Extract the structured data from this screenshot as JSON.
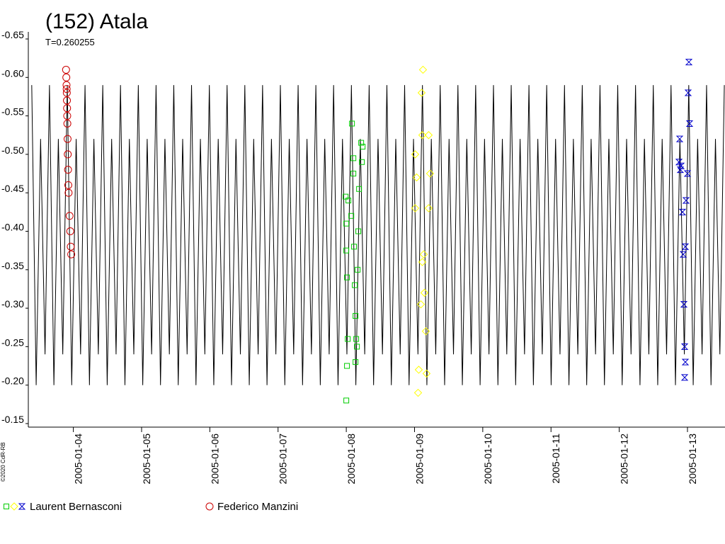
{
  "chart_data": {
    "type": "scatter",
    "title": "(152) Atala",
    "subtitle": "T=0.260255",
    "copyright": "©2020 CdR-RB",
    "xlim": [
      3.34,
      13.55
    ],
    "xticks": [
      {
        "value": 4,
        "label": "2005-01-04"
      },
      {
        "value": 5,
        "label": "2005-01-05"
      },
      {
        "value": 6,
        "label": "2005-01-06"
      },
      {
        "value": 7,
        "label": "2005-01-07"
      },
      {
        "value": 8,
        "label": "2005-01-08"
      },
      {
        "value": 9,
        "label": "2005-01-09"
      },
      {
        "value": 10,
        "label": "2005-01-10"
      },
      {
        "value": 11,
        "label": "2005-01-11"
      },
      {
        "value": 12,
        "label": "2005-01-12"
      },
      {
        "value": 13,
        "label": "2005-01-13"
      }
    ],
    "ylim": [
      -0.65,
      -0.15
    ],
    "yticks": [
      -0.65,
      {
        "value": -0.6,
        "label": "-0.60"
      },
      -0.55,
      {
        "value": -0.5,
        "label": "-0.50"
      },
      -0.45,
      {
        "value": -0.4,
        "label": "-0.40"
      },
      -0.35,
      {
        "value": -0.3,
        "label": "-0.30"
      },
      -0.25,
      {
        "value": -0.2,
        "label": "-0.20"
      },
      -0.15
    ],
    "model": {
      "color": "#000000",
      "x": [
        3.39,
        3.455,
        3.52,
        3.585,
        3.65,
        3.715,
        3.78,
        3.845,
        3.911,
        3.976,
        4.041,
        4.106,
        4.171,
        4.236,
        4.301,
        4.366,
        4.431,
        4.496,
        4.561,
        4.626,
        4.691,
        4.756,
        4.821,
        4.886,
        4.952,
        5.017,
        5.082,
        5.147,
        5.212,
        5.277,
        5.342,
        5.407,
        5.472,
        5.537,
        5.602,
        5.667,
        5.732,
        5.797,
        5.862,
        5.927,
        5.993,
        6.058,
        6.123,
        6.188,
        6.253,
        6.318,
        6.383,
        6.448,
        6.513,
        6.578,
        6.643,
        6.708,
        6.773,
        6.838,
        6.903,
        6.968,
        7.034,
        7.099,
        7.164,
        7.229,
        7.294,
        7.359,
        7.424,
        7.489,
        7.554,
        7.619,
        7.684,
        7.749,
        7.814,
        7.879,
        7.944,
        8.009,
        8.075,
        8.14,
        8.205,
        8.27,
        8.335,
        8.4,
        8.465,
        8.53,
        8.595,
        8.66,
        8.725,
        8.79,
        8.855,
        8.92,
        8.985,
        9.05,
        9.116,
        9.181,
        9.246,
        9.311,
        9.376,
        9.441,
        9.506,
        9.571,
        9.636,
        9.701,
        9.766,
        9.831,
        9.896,
        9.961,
        10.026,
        10.091,
        10.157,
        10.222,
        10.287,
        10.352,
        10.417,
        10.482,
        10.547,
        10.612,
        10.677,
        10.742,
        10.807,
        10.872,
        10.937,
        11.002,
        11.067,
        11.132,
        11.198,
        11.263,
        11.328,
        11.393,
        11.458,
        11.523,
        11.588,
        11.653,
        11.718,
        11.783,
        11.848,
        11.913,
        11.978,
        12.043,
        12.108,
        12.173,
        12.239,
        12.304,
        12.369,
        12.434,
        12.499,
        12.564,
        12.629,
        12.694,
        12.759,
        12.824,
        12.889,
        12.954,
        13.019,
        13.084,
        13.149,
        13.214,
        13.28,
        13.345,
        13.41,
        13.475,
        13.54
      ],
      "values": [
        -0.59,
        -0.2,
        -0.52,
        -0.24,
        -0.59,
        -0.2,
        -0.52,
        -0.24,
        -0.59,
        -0.2,
        -0.52,
        -0.24,
        -0.59,
        -0.2,
        -0.52,
        -0.24,
        -0.59,
        -0.2,
        -0.52,
        -0.24,
        -0.59,
        -0.2,
        -0.52,
        -0.24,
        -0.59,
        -0.2,
        -0.52,
        -0.24,
        -0.59,
        -0.2,
        -0.52,
        -0.24,
        -0.59,
        -0.2,
        -0.52,
        -0.24,
        -0.59,
        -0.2,
        -0.52,
        -0.24,
        -0.59,
        -0.2,
        -0.52,
        -0.24,
        -0.59,
        -0.2,
        -0.52,
        -0.24,
        -0.59,
        -0.2,
        -0.52,
        -0.24,
        -0.59,
        -0.2,
        -0.52,
        -0.24,
        -0.59,
        -0.2,
        -0.52,
        -0.24,
        -0.59,
        -0.2,
        -0.52,
        -0.24,
        -0.59,
        -0.2,
        -0.52,
        -0.24,
        -0.59,
        -0.2,
        -0.52,
        -0.24,
        -0.59,
        -0.2,
        -0.52,
        -0.24,
        -0.59,
        -0.2,
        -0.52,
        -0.24,
        -0.59,
        -0.2,
        -0.52,
        -0.24,
        -0.59,
        -0.2,
        -0.52,
        -0.24,
        -0.59,
        -0.2,
        -0.52,
        -0.24,
        -0.59,
        -0.2,
        -0.52,
        -0.24,
        -0.59,
        -0.2,
        -0.52,
        -0.24,
        -0.59,
        -0.2,
        -0.52,
        -0.24,
        -0.59,
        -0.2,
        -0.52,
        -0.24,
        -0.59,
        -0.2,
        -0.52,
        -0.24,
        -0.59,
        -0.2,
        -0.52,
        -0.24,
        -0.59,
        -0.2,
        -0.52,
        -0.24,
        -0.59,
        -0.2,
        -0.52,
        -0.24,
        -0.59,
        -0.2,
        -0.52,
        -0.24,
        -0.59,
        -0.2,
        -0.52,
        -0.24,
        -0.59,
        -0.2,
        -0.52,
        -0.24,
        -0.59,
        -0.2,
        -0.52,
        -0.24,
        -0.59,
        -0.2,
        -0.52,
        -0.24,
        -0.59,
        -0.2,
        -0.52,
        -0.24,
        -0.59,
        -0.2,
        -0.52,
        -0.24,
        -0.59,
        -0.2,
        -0.52,
        -0.24,
        -0.59
      ]
    },
    "observers": [
      {
        "name": "Laurent Bernasconi",
        "sessions": [
          {
            "color": "#00cc00",
            "marker": "square",
            "x": [
              8.0,
              8.01,
              8.021,
              8.01,
              8.0,
              8.0,
              7.99,
              8.031,
              8.073,
              8.114,
              8.124,
              8.135,
              8.145,
              8.135,
              8.156,
              8.166,
              8.176,
              8.187,
              8.104,
              8.104,
              8.083,
              8.228,
              8.239,
              8.218
            ],
            "values": [
              -0.18,
              -0.225,
              -0.26,
              -0.34,
              -0.375,
              -0.41,
              -0.445,
              -0.44,
              -0.42,
              -0.38,
              -0.33,
              -0.29,
              -0.26,
              -0.23,
              -0.25,
              -0.35,
              -0.4,
              -0.455,
              -0.475,
              -0.495,
              -0.54,
              -0.49,
              -0.51,
              -0.515
            ]
          },
          {
            "color": "#ffff00",
            "marker": "diamond",
            "x": [
              9.052,
              9.062,
              9.176,
              9.166,
              9.145,
              9.114,
              9.135,
              9.01,
              9.207,
              9.031,
              9.228,
              9.01,
              9.114,
              9.207,
              9.104,
              9.124,
              9.093
            ],
            "values": [
              -0.19,
              -0.22,
              -0.215,
              -0.27,
              -0.32,
              -0.36,
              -0.37,
              -0.43,
              -0.43,
              -0.47,
              -0.475,
              -0.5,
              -0.525,
              -0.525,
              -0.58,
              -0.61,
              -0.305
            ]
          },
          {
            "color": "#0000cc",
            "marker": "star",
            "x": [
              12.959,
              12.969,
              12.959,
              12.948,
              12.938,
              12.969,
              12.927,
              12.979,
              12.896,
              12.876,
              12.907,
              13.0,
              12.886,
              13.031,
              13.01,
              13.021
            ],
            "values": [
              -0.21,
              -0.23,
              -0.25,
              -0.305,
              -0.37,
              -0.38,
              -0.425,
              -0.44,
              -0.48,
              -0.49,
              -0.485,
              -0.475,
              -0.52,
              -0.54,
              -0.58,
              -0.62
            ]
          }
        ]
      },
      {
        "name": "Federico Manzini",
        "sessions": [
          {
            "color": "#cc0000",
            "marker": "circle",
            "x": [
              3.893,
              3.897,
              3.9,
              3.902,
              3.904,
              3.906,
              3.908,
              3.91,
              3.912,
              3.915,
              3.918,
              3.922,
              3.926,
              3.93,
              3.945,
              3.955,
              3.962,
              3.969
            ],
            "values": [
              -0.61,
              -0.6,
              -0.59,
              -0.585,
              -0.58,
              -0.57,
              -0.56,
              -0.55,
              -0.54,
              -0.52,
              -0.5,
              -0.48,
              -0.46,
              -0.45,
              -0.42,
              -0.4,
              -0.38,
              -0.37
            ]
          }
        ]
      }
    ]
  }
}
